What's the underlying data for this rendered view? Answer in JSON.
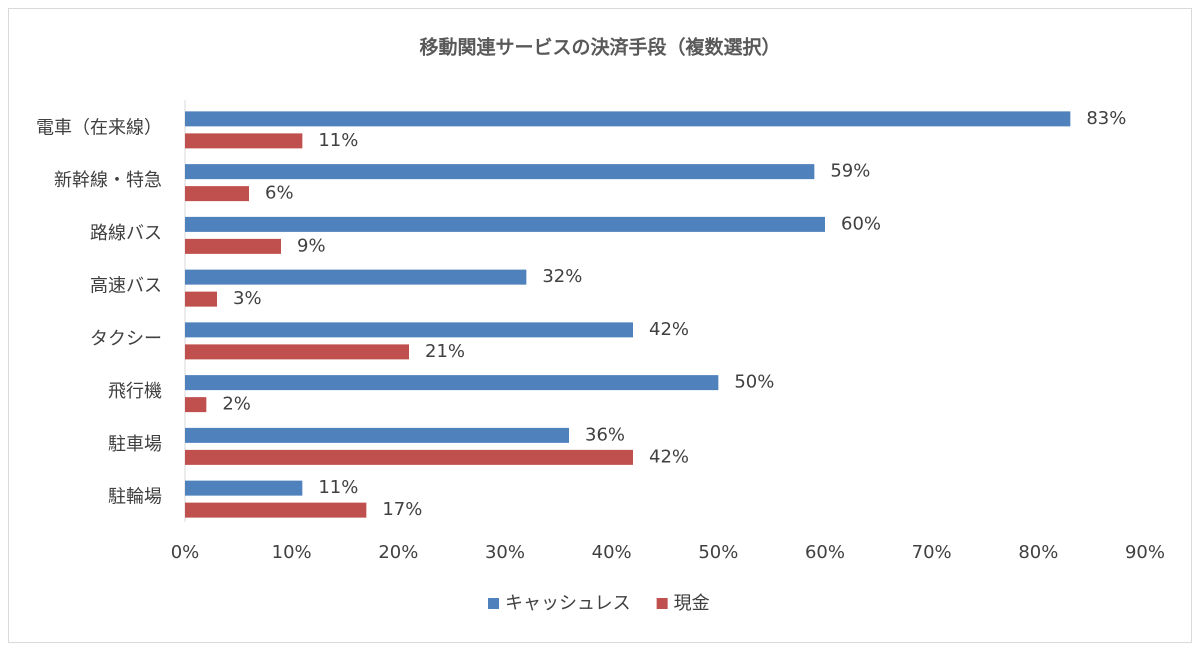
{
  "chart_data": {
    "type": "bar",
    "orientation": "horizontal",
    "title": "移動関連サービスの決済手段（複数選択）",
    "categories": [
      "電車（在来線）",
      "新幹線・特急",
      "路線バス",
      "高速バス",
      "タクシー",
      "飛行機",
      "駐車場",
      "駐輪場"
    ],
    "series": [
      {
        "name": "キャッシュレス",
        "color": "#4f81bd",
        "values": [
          83,
          59,
          60,
          32,
          42,
          50,
          36,
          11
        ],
        "value_labels": [
          "83%",
          "59%",
          "60%",
          "32%",
          "42%",
          "50%",
          "36%",
          "11%"
        ]
      },
      {
        "name": "現金",
        "color": "#c0504d",
        "values": [
          11,
          6,
          9,
          3,
          21,
          2,
          42,
          17
        ],
        "value_labels": [
          "11%",
          "6%",
          "9%",
          "3%",
          "21%",
          "2%",
          "42%",
          "17%"
        ]
      }
    ],
    "xlim": [
      0,
      90
    ],
    "xticks": [
      {
        "value": 0,
        "label": "0%"
      },
      {
        "value": 10,
        "label": "10%"
      },
      {
        "value": 20,
        "label": "20%"
      },
      {
        "value": 30,
        "label": "30%"
      },
      {
        "value": 40,
        "label": "40%"
      },
      {
        "value": 50,
        "label": "50%"
      },
      {
        "value": 60,
        "label": "60%"
      },
      {
        "value": 70,
        "label": "70%"
      },
      {
        "value": 80,
        "label": "80%"
      },
      {
        "value": 90,
        "label": "90%"
      }
    ],
    "grid": false,
    "legend": "bottom"
  }
}
